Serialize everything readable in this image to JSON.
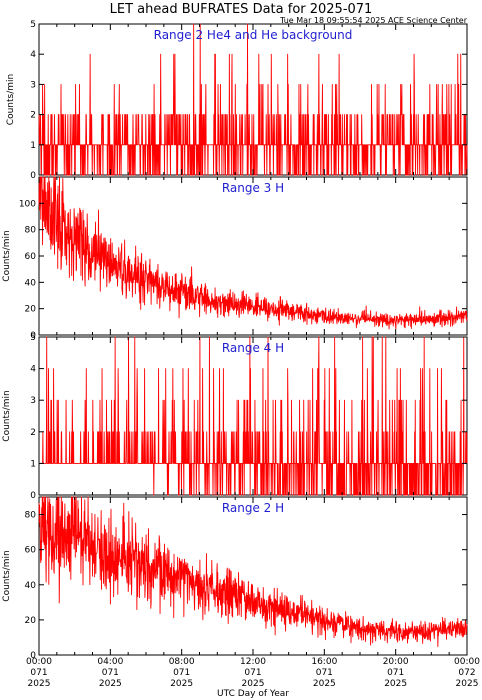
{
  "figure": {
    "title": "LET ahead BUFRATES Data for 2025-071",
    "timestamp": "Tue Mar 18 09:55:54 2025 ACE Science Center",
    "xlabel": "UTC Day of Year",
    "line_color": "#ff0000",
    "label_color": "#1f1fd0"
  },
  "chart_data": [
    {
      "type": "line",
      "panel_label": "Range 2 He4 and He background",
      "ylabel": "Counts/min",
      "ylim": [
        0,
        5
      ],
      "yticks": [
        0,
        1,
        2,
        3,
        4,
        5
      ],
      "xlim": [
        0,
        24
      ],
      "x_unit": "hours",
      "series": [
        {
          "kind": "discrete",
          "base": [
            [
              0,
              0.75
            ]
          ],
          "spike_rate": 0.2,
          "spike_levels": [
            2,
            3,
            4,
            5
          ],
          "spike_weights": [
            0.8,
            0.15,
            0.04,
            0.01
          ],
          "max_value": 5
        }
      ]
    },
    {
      "type": "line",
      "panel_label": "Range 3 H",
      "ylabel": "Counts/min",
      "ylim": [
        0,
        120
      ],
      "yticks": [
        0,
        20,
        40,
        60,
        80,
        100
      ],
      "xlim": [
        0,
        24
      ],
      "x_unit": "hours",
      "series": [
        {
          "kind": "continuous",
          "trend": [
            [
              0,
              105
            ],
            [
              1,
              85
            ],
            [
              2,
              75
            ],
            [
              4,
              55
            ],
            [
              6,
              42
            ],
            [
              8,
              33
            ],
            [
              10,
              25
            ],
            [
              12,
              22
            ],
            [
              14,
              18
            ],
            [
              16,
              14
            ],
            [
              18,
              12
            ],
            [
              20,
              11
            ],
            [
              22,
              12
            ],
            [
              24,
              14
            ]
          ],
          "noise_frac": 0.22
        }
      ]
    },
    {
      "type": "line",
      "panel_label": "Range 4 H",
      "ylabel": "Counts/min",
      "ylim": [
        0,
        5
      ],
      "yticks": [
        0,
        1,
        2,
        3,
        4,
        5
      ],
      "xlim": [
        0,
        24
      ],
      "x_unit": "hours",
      "series": [
        {
          "kind": "discrete",
          "base": [
            [
              0,
              1.8
            ],
            [
              3,
              1.5
            ],
            [
              6,
              1.0
            ],
            [
              10,
              0.8
            ],
            [
              14,
              0.7
            ],
            [
              24,
              0.6
            ]
          ],
          "spike_rate": 0.18,
          "spike_levels": [
            2,
            3,
            4,
            5
          ],
          "spike_weights": [
            0.55,
            0.25,
            0.12,
            0.08
          ],
          "max_value": 5
        }
      ]
    },
    {
      "type": "line",
      "panel_label": "Range 2 H",
      "ylabel": "Counts/min",
      "ylim": [
        0,
        90
      ],
      "yticks": [
        0,
        20,
        40,
        60,
        80
      ],
      "xlim": [
        0,
        24
      ],
      "x_unit": "hours",
      "series": [
        {
          "kind": "continuous",
          "trend": [
            [
              0,
              72
            ],
            [
              1,
              68
            ],
            [
              2,
              70
            ],
            [
              3,
              60
            ],
            [
              5,
              52
            ],
            [
              8,
              45
            ],
            [
              10,
              37
            ],
            [
              12,
              30
            ],
            [
              14,
              25
            ],
            [
              16,
              20
            ],
            [
              18,
              15
            ],
            [
              20,
              13
            ],
            [
              22,
              14
            ],
            [
              24,
              15
            ]
          ],
          "noise_frac": 0.2
        }
      ]
    }
  ],
  "x_axis": {
    "ticks": [
      {
        "x": 0,
        "time": "00:00",
        "doy": "071",
        "year": "2025"
      },
      {
        "x": 4,
        "time": "04:00",
        "doy": "071",
        "year": "2025"
      },
      {
        "x": 8,
        "time": "08:00",
        "doy": "071",
        "year": "2025"
      },
      {
        "x": 12,
        "time": "12:00",
        "doy": "071",
        "year": "2025"
      },
      {
        "x": 16,
        "time": "16:00",
        "doy": "071",
        "year": "2025"
      },
      {
        "x": 20,
        "time": "20:00",
        "doy": "071",
        "year": "2025"
      },
      {
        "x": 24,
        "time": "00:00",
        "doy": "072",
        "year": "2025"
      }
    ]
  }
}
